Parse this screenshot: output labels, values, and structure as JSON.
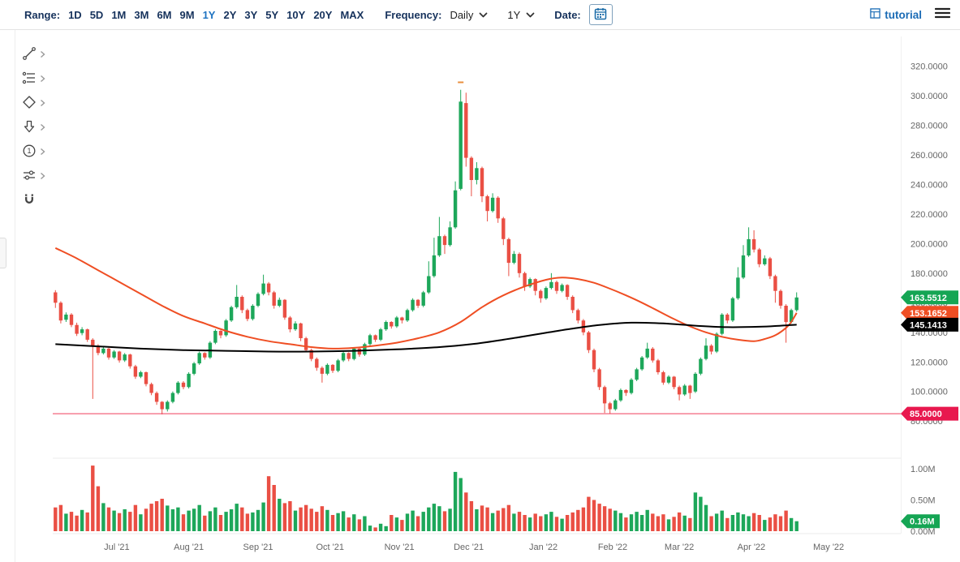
{
  "toolbar": {
    "range_label": "Range:",
    "range_options": [
      "1D",
      "5D",
      "1M",
      "3M",
      "6M",
      "9M",
      "1Y",
      "2Y",
      "3Y",
      "5Y",
      "10Y",
      "20Y",
      "MAX"
    ],
    "range_selected": "1Y",
    "frequency_label": "Frequency:",
    "frequency_value": "Daily",
    "period_value": "1Y",
    "date_label": "Date:",
    "brand": "tutorial"
  },
  "sidebar": {
    "tools": [
      {
        "name": "trend-line-tool",
        "icon": "trend-line",
        "has_submenu": true
      },
      {
        "name": "fibonacci-tool",
        "icon": "fib-lines",
        "has_submenu": true
      },
      {
        "name": "shapes-tool",
        "icon": "diamond",
        "has_submenu": true
      },
      {
        "name": "arrow-tool",
        "icon": "down-arrow",
        "has_submenu": true
      },
      {
        "name": "number-annotation-tool",
        "icon": "circle-number",
        "glyph": "1",
        "has_submenu": true
      },
      {
        "name": "sliders-tool",
        "icon": "sliders",
        "has_submenu": true
      },
      {
        "name": "magnet-tool",
        "icon": "magnet",
        "has_submenu": false
      }
    ]
  },
  "colors": {
    "up": "#1da75a",
    "down": "#ea4f44",
    "ma_fast": "#ef4e23",
    "ma_slow": "#000000",
    "level_line": "#ef3d5b",
    "level_badge": "#e8184e",
    "axis_text": "#666666",
    "toolbar_text": "#16325c",
    "selected_range": "#1e73c1",
    "brand": "#1a6bb5"
  },
  "chart_data": {
    "type": "candlestick",
    "frequency": "Daily",
    "range": "1Y",
    "price_range": [
      56,
      340
    ],
    "volume_range": [
      0,
      1.17
    ],
    "grid": "off",
    "legend": "none",
    "y_axis": {
      "ticks": [
        {
          "v": 320,
          "label": "320.0000"
        },
        {
          "v": 300,
          "label": "300.0000"
        },
        {
          "v": 280,
          "label": "280.0000"
        },
        {
          "v": 260,
          "label": "260.0000"
        },
        {
          "v": 240,
          "label": "240.0000"
        },
        {
          "v": 220,
          "label": "220.0000"
        },
        {
          "v": 200,
          "label": "200.0000"
        },
        {
          "v": 180,
          "label": "180.0000"
        },
        {
          "v": 160,
          "label": "160.0000"
        },
        {
          "v": 140,
          "label": "140.0000"
        },
        {
          "v": 120,
          "label": "120.0000"
        },
        {
          "v": 100,
          "label": "100.0000"
        },
        {
          "v": 80,
          "label": "80.0000"
        }
      ]
    },
    "volume_axis": {
      "ticks": [
        {
          "v": 1.0,
          "label": "1.00M"
        },
        {
          "v": 0.5,
          "label": "0.50M"
        },
        {
          "v": 0,
          "label": "0.00M"
        }
      ]
    },
    "months": [
      {
        "label": "Jul '21",
        "tick_idx": 12
      },
      {
        "label": "Aug '21",
        "tick_idx": 25.5
      },
      {
        "label": "Sep '21",
        "tick_idx": 38.5
      },
      {
        "label": "Oct '21",
        "tick_idx": 52
      },
      {
        "label": "Nov '21",
        "tick_idx": 65
      },
      {
        "label": "Dec '21",
        "tick_idx": 78
      },
      {
        "label": "Jan '22",
        "tick_idx": 92
      },
      {
        "label": "Feb '22",
        "tick_idx": 105
      },
      {
        "label": "Mar '22",
        "tick_idx": 117.5
      },
      {
        "label": "Apr '22",
        "tick_idx": 131
      },
      {
        "label": "May '22",
        "tick_idx": 145.5
      }
    ],
    "level_line": {
      "value": 85.0,
      "label": "85.0000"
    },
    "annotation": {
      "idx": 76,
      "price": 309,
      "color": "#e98f3e"
    },
    "badges": [
      {
        "name": "last-price",
        "panel": "price",
        "value": 163.5512,
        "label": "163.5512",
        "color": "#15a554"
      },
      {
        "name": "ma-fast",
        "panel": "price",
        "value": 153.1652,
        "label": "153.1652",
        "color": "#ef4e23"
      },
      {
        "name": "ma-slow",
        "panel": "price",
        "value": 145.1413,
        "label": "145.1413",
        "color": "#000000"
      },
      {
        "name": "level",
        "panel": "price",
        "value": 85.0,
        "label": "85.0000",
        "color": "#e8184e"
      },
      {
        "name": "last-volume",
        "panel": "volume",
        "value": 0.16,
        "label": "0.16M",
        "color": "#15a554"
      }
    ],
    "candles": [
      [
        167,
        168.5,
        156.5,
        160
      ],
      [
        160,
        161,
        146,
        148
      ],
      [
        148.5,
        153.5,
        147,
        152
      ],
      [
        152,
        153,
        143.5,
        145
      ],
      [
        145,
        146.5,
        137.5,
        139
      ],
      [
        139.5,
        143.5,
        138,
        142
      ],
      [
        142,
        142.5,
        133.5,
        135
      ],
      [
        135,
        136,
        95,
        131
      ],
      [
        131,
        132,
        124.5,
        126
      ],
      [
        126,
        130,
        125,
        129
      ],
      [
        129,
        129.5,
        121.5,
        123
      ],
      [
        123,
        128,
        122,
        127
      ],
      [
        127,
        127.5,
        119.5,
        121
      ],
      [
        121,
        126,
        120,
        125
      ],
      [
        125,
        125.5,
        115.5,
        117
      ],
      [
        117,
        118,
        108.5,
        110
      ],
      [
        110,
        114,
        109,
        113
      ],
      [
        113,
        113.5,
        103.5,
        105
      ],
      [
        105,
        106,
        97.5,
        99
      ],
      [
        99,
        100,
        91,
        93
      ],
      [
        93,
        93.5,
        84.5,
        88
      ],
      [
        88,
        94,
        86.5,
        93
      ],
      [
        93,
        100,
        92,
        99
      ],
      [
        99,
        107,
        98,
        106
      ],
      [
        106,
        107,
        101.5,
        103
      ],
      [
        103,
        113,
        102,
        112
      ],
      [
        112,
        120,
        111,
        119
      ],
      [
        119,
        127,
        118,
        126
      ],
      [
        126,
        126.5,
        121.5,
        123
      ],
      [
        123,
        134,
        122,
        133
      ],
      [
        133,
        142,
        132,
        141
      ],
      [
        141,
        141.5,
        136,
        138
      ],
      [
        138,
        149,
        137,
        148
      ],
      [
        148,
        158,
        147,
        157
      ],
      [
        157,
        172,
        156,
        164
      ],
      [
        164,
        165,
        153,
        155
      ],
      [
        155,
        156,
        147.5,
        149
      ],
      [
        149,
        159,
        148,
        158
      ],
      [
        158,
        167,
        157,
        166
      ],
      [
        166,
        179,
        165,
        173
      ],
      [
        173,
        174,
        165,
        167
      ],
      [
        167,
        168,
        156,
        158
      ],
      [
        158,
        163.5,
        157,
        162
      ],
      [
        162,
        162.5,
        148.5,
        150
      ],
      [
        150,
        151,
        140,
        142
      ],
      [
        142,
        147.5,
        141,
        146
      ],
      [
        146,
        146.5,
        134,
        136
      ],
      [
        136,
        137,
        126.5,
        128
      ],
      [
        128,
        129,
        120.5,
        122
      ],
      [
        122,
        123,
        114,
        116
      ],
      [
        116,
        117,
        106,
        112
      ],
      [
        112,
        119,
        111,
        118
      ],
      [
        118,
        118.5,
        112.5,
        114
      ],
      [
        114,
        122,
        113,
        121
      ],
      [
        121,
        127,
        120,
        126
      ],
      [
        126,
        126.5,
        120.5,
        122
      ],
      [
        122,
        130,
        121,
        129
      ],
      [
        129,
        129.5,
        123.5,
        125
      ],
      [
        125,
        133,
        124,
        132
      ],
      [
        132,
        139,
        131,
        138
      ],
      [
        138,
        138.5,
        133.5,
        135
      ],
      [
        135,
        143,
        134,
        142
      ],
      [
        142,
        148,
        141,
        147
      ],
      [
        147,
        147.5,
        142.5,
        144
      ],
      [
        144,
        151,
        143,
        150
      ],
      [
        150,
        150.5,
        146,
        148
      ],
      [
        148,
        156,
        147,
        155
      ],
      [
        155,
        163,
        154,
        162
      ],
      [
        162,
        162.5,
        156.5,
        158
      ],
      [
        158,
        168,
        157,
        167
      ],
      [
        167,
        188,
        166,
        178
      ],
      [
        178,
        204,
        177,
        192
      ],
      [
        192,
        218,
        191,
        205
      ],
      [
        205,
        206,
        193,
        199
      ],
      [
        199,
        215,
        198,
        211
      ],
      [
        211,
        242,
        210,
        236
      ],
      [
        237,
        304,
        236,
        296
      ],
      [
        295,
        302,
        252,
        258
      ],
      [
        258,
        259,
        232,
        243
      ],
      [
        243,
        255,
        240,
        251
      ],
      [
        251,
        252,
        228,
        232
      ],
      [
        232,
        233,
        215,
        222
      ],
      [
        222,
        234,
        221,
        231
      ],
      [
        231,
        232,
        214,
        217
      ],
      [
        217,
        218,
        199,
        203
      ],
      [
        203,
        204,
        178,
        187
      ],
      [
        187,
        195,
        186,
        193
      ],
      [
        193,
        194,
        177,
        180
      ],
      [
        180,
        181,
        168,
        171
      ],
      [
        171,
        177,
        170,
        176
      ],
      [
        176,
        176.5,
        165,
        168
      ],
      [
        168,
        169,
        160,
        163
      ],
      [
        163,
        171,
        162,
        170
      ],
      [
        170,
        180,
        169,
        174
      ],
      [
        174,
        175,
        166,
        168
      ],
      [
        168,
        173,
        167,
        172
      ],
      [
        172,
        172.5,
        162,
        164
      ],
      [
        164,
        165,
        153,
        155
      ],
      [
        155,
        156,
        146,
        148
      ],
      [
        148,
        149,
        138,
        140
      ],
      [
        140,
        141,
        126,
        128
      ],
      [
        128,
        129,
        113,
        115
      ],
      [
        115,
        116,
        101,
        103
      ],
      [
        103,
        104,
        85.5,
        92
      ],
      [
        92,
        93,
        84.8,
        88
      ],
      [
        88,
        95,
        87,
        94
      ],
      [
        94,
        102,
        93,
        101
      ],
      [
        101,
        101.5,
        97,
        99
      ],
      [
        99,
        109,
        98,
        108
      ],
      [
        108,
        116,
        107,
        115
      ],
      [
        115,
        124,
        114,
        123
      ],
      [
        123,
        133,
        122,
        129
      ],
      [
        129,
        130,
        119.5,
        121
      ],
      [
        121,
        122,
        111.5,
        113
      ],
      [
        113,
        114,
        104.5,
        106
      ],
      [
        106,
        111,
        105,
        110
      ],
      [
        110,
        110.5,
        101.5,
        103
      ],
      [
        103,
        104,
        94,
        98
      ],
      [
        98,
        105,
        97,
        104
      ],
      [
        104,
        104.5,
        95,
        99
      ],
      [
        100,
        113,
        99,
        112
      ],
      [
        112,
        123,
        111,
        122
      ],
      [
        122,
        136,
        121,
        131
      ],
      [
        131,
        132,
        125,
        127
      ],
      [
        127,
        140,
        126,
        139
      ],
      [
        139,
        153,
        138,
        152
      ],
      [
        152,
        153,
        146,
        148
      ],
      [
        148,
        164,
        147,
        163
      ],
      [
        163,
        184,
        162,
        177
      ],
      [
        177,
        199,
        176,
        192
      ],
      [
        192,
        211,
        191,
        203
      ],
      [
        203,
        209,
        194,
        196
      ],
      [
        196,
        197,
        184,
        186
      ],
      [
        186,
        192,
        185,
        190
      ],
      [
        190,
        191,
        176,
        178
      ],
      [
        178,
        179,
        160,
        168
      ],
      [
        168,
        169,
        156,
        158
      ],
      [
        158,
        159,
        133,
        147
      ],
      [
        147,
        156,
        146,
        155
      ],
      [
        155,
        167,
        154,
        163.5512
      ]
    ],
    "volumes": [
      0.38,
      0.42,
      0.28,
      0.31,
      0.25,
      0.34,
      0.3,
      1.05,
      0.72,
      0.45,
      0.38,
      0.33,
      0.29,
      0.35,
      0.31,
      0.42,
      0.27,
      0.36,
      0.44,
      0.48,
      0.52,
      0.41,
      0.35,
      0.38,
      0.27,
      0.33,
      0.36,
      0.42,
      0.25,
      0.32,
      0.38,
      0.26,
      0.31,
      0.35,
      0.44,
      0.38,
      0.28,
      0.3,
      0.34,
      0.46,
      0.88,
      0.74,
      0.52,
      0.45,
      0.48,
      0.33,
      0.38,
      0.42,
      0.36,
      0.31,
      0.4,
      0.34,
      0.26,
      0.29,
      0.32,
      0.22,
      0.27,
      0.19,
      0.24,
      0.09,
      0.06,
      0.12,
      0.08,
      0.26,
      0.22,
      0.18,
      0.28,
      0.33,
      0.24,
      0.31,
      0.38,
      0.44,
      0.4,
      0.32,
      0.36,
      0.95,
      0.85,
      0.62,
      0.48,
      0.35,
      0.41,
      0.38,
      0.29,
      0.33,
      0.37,
      0.42,
      0.28,
      0.31,
      0.26,
      0.22,
      0.28,
      0.24,
      0.27,
      0.31,
      0.23,
      0.2,
      0.26,
      0.3,
      0.34,
      0.38,
      0.55,
      0.5,
      0.44,
      0.4,
      0.36,
      0.33,
      0.29,
      0.22,
      0.27,
      0.31,
      0.26,
      0.34,
      0.28,
      0.24,
      0.27,
      0.19,
      0.23,
      0.3,
      0.25,
      0.21,
      0.62,
      0.55,
      0.42,
      0.24,
      0.28,
      0.33,
      0.21,
      0.26,
      0.3,
      0.27,
      0.24,
      0.29,
      0.26,
      0.18,
      0.22,
      0.27,
      0.24,
      0.33,
      0.21,
      0.16
    ],
    "ma_fast": [
      [
        0,
        197
      ],
      [
        4,
        190
      ],
      [
        8,
        182
      ],
      [
        12,
        174
      ],
      [
        16,
        166
      ],
      [
        20,
        158
      ],
      [
        24,
        151
      ],
      [
        28,
        146
      ],
      [
        32,
        141
      ],
      [
        36,
        137
      ],
      [
        40,
        134
      ],
      [
        44,
        132
      ],
      [
        48,
        130
      ],
      [
        52,
        129
      ],
      [
        56,
        129.5
      ],
      [
        60,
        131
      ],
      [
        64,
        133
      ],
      [
        68,
        136
      ],
      [
        72,
        140
      ],
      [
        76,
        147
      ],
      [
        80,
        157
      ],
      [
        84,
        165
      ],
      [
        88,
        171
      ],
      [
        92,
        175.5
      ],
      [
        95,
        177
      ],
      [
        98,
        176
      ],
      [
        101,
        173.5
      ],
      [
        104,
        169.5
      ],
      [
        107,
        165
      ],
      [
        110,
        160
      ],
      [
        113,
        154.5
      ],
      [
        116,
        149
      ],
      [
        119,
        144
      ],
      [
        122,
        140
      ],
      [
        125,
        137
      ],
      [
        128,
        135
      ],
      [
        131,
        134
      ],
      [
        133,
        135.5
      ],
      [
        135,
        138
      ],
      [
        137,
        143
      ],
      [
        138,
        147
      ],
      [
        139,
        153.17
      ]
    ],
    "ma_slow": [
      [
        0,
        132
      ],
      [
        8,
        130.5
      ],
      [
        16,
        129
      ],
      [
        24,
        128
      ],
      [
        32,
        127.5
      ],
      [
        40,
        127
      ],
      [
        48,
        127
      ],
      [
        56,
        127.5
      ],
      [
        64,
        128.5
      ],
      [
        72,
        130
      ],
      [
        78,
        132
      ],
      [
        84,
        135
      ],
      [
        90,
        138.5
      ],
      [
        96,
        142
      ],
      [
        102,
        145
      ],
      [
        108,
        146.5
      ],
      [
        114,
        146
      ],
      [
        120,
        144.5
      ],
      [
        126,
        143.5
      ],
      [
        132,
        143.8
      ],
      [
        136,
        144.5
      ],
      [
        139,
        145.1413
      ]
    ]
  }
}
